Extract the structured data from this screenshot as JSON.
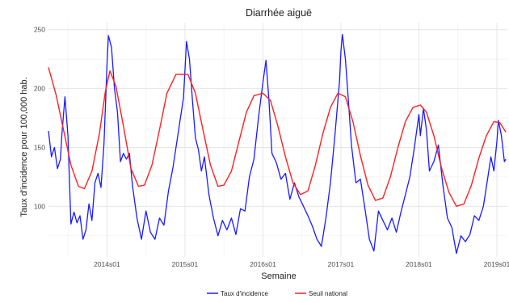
{
  "colors": {
    "incidence": "#1a1aff",
    "threshold": "#ff2020",
    "grid_major": "#e6e6e6",
    "grid_minor": "#f2f2f2"
  },
  "chart_data": {
    "type": "line",
    "title": "Diarrhée aiguë",
    "xlabel": "Semaine",
    "ylabel": "Taux d'incidence pour 100,000 hab.",
    "grid": true,
    "legend_position": "bottom",
    "x_ticks": [
      "2014s01",
      "2015s01",
      "2016s01",
      "2017s01",
      "2018s01",
      "2019s01"
    ],
    "y_ticks": [
      100,
      150,
      200,
      250
    ],
    "xlim": [
      "2013s14",
      "2019s08"
    ],
    "ylim": [
      57,
      256
    ],
    "series": [
      {
        "name": "Taux d'incidence",
        "color": "#1a1aff",
        "points": [
          [
            "2013s14",
            164
          ],
          [
            "2013s16",
            142
          ],
          [
            "2013s18",
            150
          ],
          [
            "2013s20",
            132
          ],
          [
            "2013s22",
            140
          ],
          [
            "2013s23",
            162
          ],
          [
            "2013s25",
            193
          ],
          [
            "2013s27",
            160
          ],
          [
            "2013s29",
            85
          ],
          [
            "2013s31",
            95
          ],
          [
            "2013s33",
            86
          ],
          [
            "2013s35",
            92
          ],
          [
            "2013s37",
            72
          ],
          [
            "2013s39",
            80
          ],
          [
            "2013s41",
            102
          ],
          [
            "2013s43",
            88
          ],
          [
            "2013s45",
            120
          ],
          [
            "2013s47",
            128
          ],
          [
            "2013s49",
            116
          ],
          [
            "2013s51",
            153
          ],
          [
            "2014s01",
            220
          ],
          [
            "2014s02",
            245
          ],
          [
            "2014s04",
            235
          ],
          [
            "2014s06",
            200
          ],
          [
            "2014s08",
            180
          ],
          [
            "2014s10",
            138
          ],
          [
            "2014s12",
            145
          ],
          [
            "2014s14",
            140
          ],
          [
            "2014s16",
            145
          ],
          [
            "2014s18",
            118
          ],
          [
            "2014s21",
            90
          ],
          [
            "2014s24",
            72
          ],
          [
            "2014s27",
            96
          ],
          [
            "2014s30",
            78
          ],
          [
            "2014s33",
            72
          ],
          [
            "2014s36",
            90
          ],
          [
            "2014s39",
            84
          ],
          [
            "2014s42",
            113
          ],
          [
            "2014s45",
            133
          ],
          [
            "2014s48",
            158
          ],
          [
            "2014s50",
            175
          ],
          [
            "2014s52",
            192
          ],
          [
            "2015s01",
            215
          ],
          [
            "2015s02",
            240
          ],
          [
            "2015s04",
            225
          ],
          [
            "2015s06",
            190
          ],
          [
            "2015s08",
            158
          ],
          [
            "2015s10",
            148
          ],
          [
            "2015s12",
            130
          ],
          [
            "2015s14",
            142
          ],
          [
            "2015s17",
            110
          ],
          [
            "2015s20",
            90
          ],
          [
            "2015s23",
            75
          ],
          [
            "2015s26",
            88
          ],
          [
            "2015s29",
            80
          ],
          [
            "2015s32",
            90
          ],
          [
            "2015s35",
            76
          ],
          [
            "2015s38",
            98
          ],
          [
            "2015s41",
            96
          ],
          [
            "2015s44",
            125
          ],
          [
            "2015s47",
            140
          ],
          [
            "2015s50",
            175
          ],
          [
            "2016s01",
            205
          ],
          [
            "2016s03",
            224
          ],
          [
            "2016s05",
            190
          ],
          [
            "2016s07",
            145
          ],
          [
            "2016s10",
            137
          ],
          [
            "2016s13",
            123
          ],
          [
            "2016s16",
            128
          ],
          [
            "2016s19",
            106
          ],
          [
            "2016s22",
            120
          ],
          [
            "2016s25",
            108
          ],
          [
            "2016s28",
            100
          ],
          [
            "2016s31",
            92
          ],
          [
            "2016s34",
            83
          ],
          [
            "2016s37",
            72
          ],
          [
            "2016s40",
            66
          ],
          [
            "2016s43",
            90
          ],
          [
            "2016s46",
            120
          ],
          [
            "2016s49",
            160
          ],
          [
            "2016s52",
            205
          ],
          [
            "2017s01",
            232
          ],
          [
            "2017s02",
            246
          ],
          [
            "2017s04",
            225
          ],
          [
            "2017s06",
            190
          ],
          [
            "2017s08",
            152
          ],
          [
            "2017s11",
            120
          ],
          [
            "2017s14",
            123
          ],
          [
            "2017s17",
            98
          ],
          [
            "2017s20",
            72
          ],
          [
            "2017s23",
            62
          ],
          [
            "2017s26",
            96
          ],
          [
            "2017s29",
            88
          ],
          [
            "2017s32",
            80
          ],
          [
            "2017s35",
            90
          ],
          [
            "2017s38",
            78
          ],
          [
            "2017s41",
            95
          ],
          [
            "2017s44",
            110
          ],
          [
            "2017s47",
            125
          ],
          [
            "2017s50",
            150
          ],
          [
            "2018s01",
            178
          ],
          [
            "2018s02",
            160
          ],
          [
            "2018s04",
            183
          ],
          [
            "2018s06",
            165
          ],
          [
            "2018s08",
            130
          ],
          [
            "2018s11",
            138
          ],
          [
            "2018s14",
            152
          ],
          [
            "2018s17",
            118
          ],
          [
            "2018s20",
            90
          ],
          [
            "2018s23",
            82
          ],
          [
            "2018s26",
            60
          ],
          [
            "2018s29",
            75
          ],
          [
            "2018s32",
            70
          ],
          [
            "2018s35",
            76
          ],
          [
            "2018s38",
            92
          ],
          [
            "2018s41",
            88
          ],
          [
            "2018s44",
            100
          ],
          [
            "2018s47",
            125
          ],
          [
            "2018s49",
            142
          ],
          [
            "2018s51",
            130
          ],
          [
            "2019s01",
            155
          ],
          [
            "2019s02",
            173
          ],
          [
            "2019s04",
            160
          ],
          [
            "2019s06",
            138
          ],
          [
            "2019s07",
            140
          ]
        ]
      },
      {
        "name": "Seuil national",
        "color": "#ff2020",
        "points": [
          [
            "2013s14",
            218
          ],
          [
            "2013s19",
            195
          ],
          [
            "2013s24",
            165
          ],
          [
            "2013s29",
            135
          ],
          [
            "2013s34",
            117
          ],
          [
            "2013s38",
            115
          ],
          [
            "2013s43",
            130
          ],
          [
            "2013s48",
            162
          ],
          [
            "2013s52",
            198
          ],
          [
            "2014s03",
            215
          ],
          [
            "2014s07",
            202
          ],
          [
            "2014s12",
            168
          ],
          [
            "2014s17",
            132
          ],
          [
            "2014s22",
            117
          ],
          [
            "2014s26",
            118
          ],
          [
            "2014s31",
            135
          ],
          [
            "2014s36",
            165
          ],
          [
            "2014s41",
            196
          ],
          [
            "2014s47",
            212
          ],
          [
            "2015s03",
            212
          ],
          [
            "2015s08",
            196
          ],
          [
            "2015s13",
            165
          ],
          [
            "2015s18",
            135
          ],
          [
            "2015s23",
            117
          ],
          [
            "2015s27",
            118
          ],
          [
            "2015s32",
            130
          ],
          [
            "2015s37",
            155
          ],
          [
            "2015s42",
            180
          ],
          [
            "2015s47",
            194
          ],
          [
            "2016s01",
            196
          ],
          [
            "2016s06",
            190
          ],
          [
            "2016s11",
            168
          ],
          [
            "2016s16",
            142
          ],
          [
            "2016s21",
            120
          ],
          [
            "2016s26",
            110
          ],
          [
            "2016s31",
            113
          ],
          [
            "2016s36",
            135
          ],
          [
            "2016s41",
            162
          ],
          [
            "2016s46",
            184
          ],
          [
            "2016s51",
            196
          ],
          [
            "2017s04",
            193
          ],
          [
            "2017s09",
            172
          ],
          [
            "2017s14",
            143
          ],
          [
            "2017s19",
            118
          ],
          [
            "2017s24",
            105
          ],
          [
            "2017s29",
            107
          ],
          [
            "2017s34",
            125
          ],
          [
            "2017s39",
            150
          ],
          [
            "2017s44",
            172
          ],
          [
            "2017s49",
            184
          ],
          [
            "2018s02",
            186
          ],
          [
            "2018s06",
            180
          ],
          [
            "2018s11",
            160
          ],
          [
            "2018s16",
            133
          ],
          [
            "2018s21",
            112
          ],
          [
            "2018s26",
            100
          ],
          [
            "2018s31",
            102
          ],
          [
            "2018s36",
            118
          ],
          [
            "2018s41",
            141
          ],
          [
            "2018s46",
            160
          ],
          [
            "2018s51",
            172
          ],
          [
            "2019s03",
            171
          ],
          [
            "2019s07",
            163
          ]
        ]
      }
    ]
  }
}
